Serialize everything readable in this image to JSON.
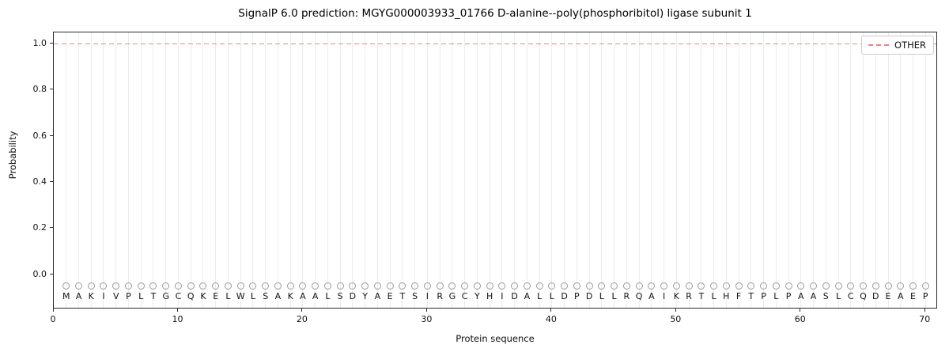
{
  "chart_data": {
    "type": "line",
    "title": "SignalP 6.0 prediction: MGYG000003933_01766 D-alanine--poly(phosphoribitol) ligase subunit 1",
    "xlabel": "Protein sequence",
    "ylabel": "Probability",
    "xlim": [
      0,
      71
    ],
    "ylim": [
      -0.15,
      1.05
    ],
    "x_ticks": [
      0,
      10,
      20,
      30,
      40,
      50,
      60,
      70
    ],
    "y_ticks": [
      0.0,
      0.2,
      0.4,
      0.6,
      0.8,
      1.0
    ],
    "grid": {
      "vertical_per_residue": true,
      "horizontal": false,
      "color": "#ececec"
    },
    "sequence": "MAKIVPLTGCQKELWLSAKAALSDYAETSIRGCYHIDALLDPDLLRQAIKRTLHFTPLPAASLCQDEAEP",
    "sequence_length": 70,
    "series": [
      {
        "name": "OTHER",
        "color": "#ef8282",
        "linestyle": "dashed",
        "y_constant": 1.0,
        "x_range": [
          1,
          70
        ]
      }
    ],
    "residue_markers": {
      "shape": "open-circle",
      "y": -0.05,
      "color": "#9a9a9a"
    },
    "legend": {
      "position": "upper right",
      "entries": [
        {
          "label": "OTHER",
          "color": "#ef8282",
          "linestyle": "dashed"
        }
      ]
    }
  }
}
